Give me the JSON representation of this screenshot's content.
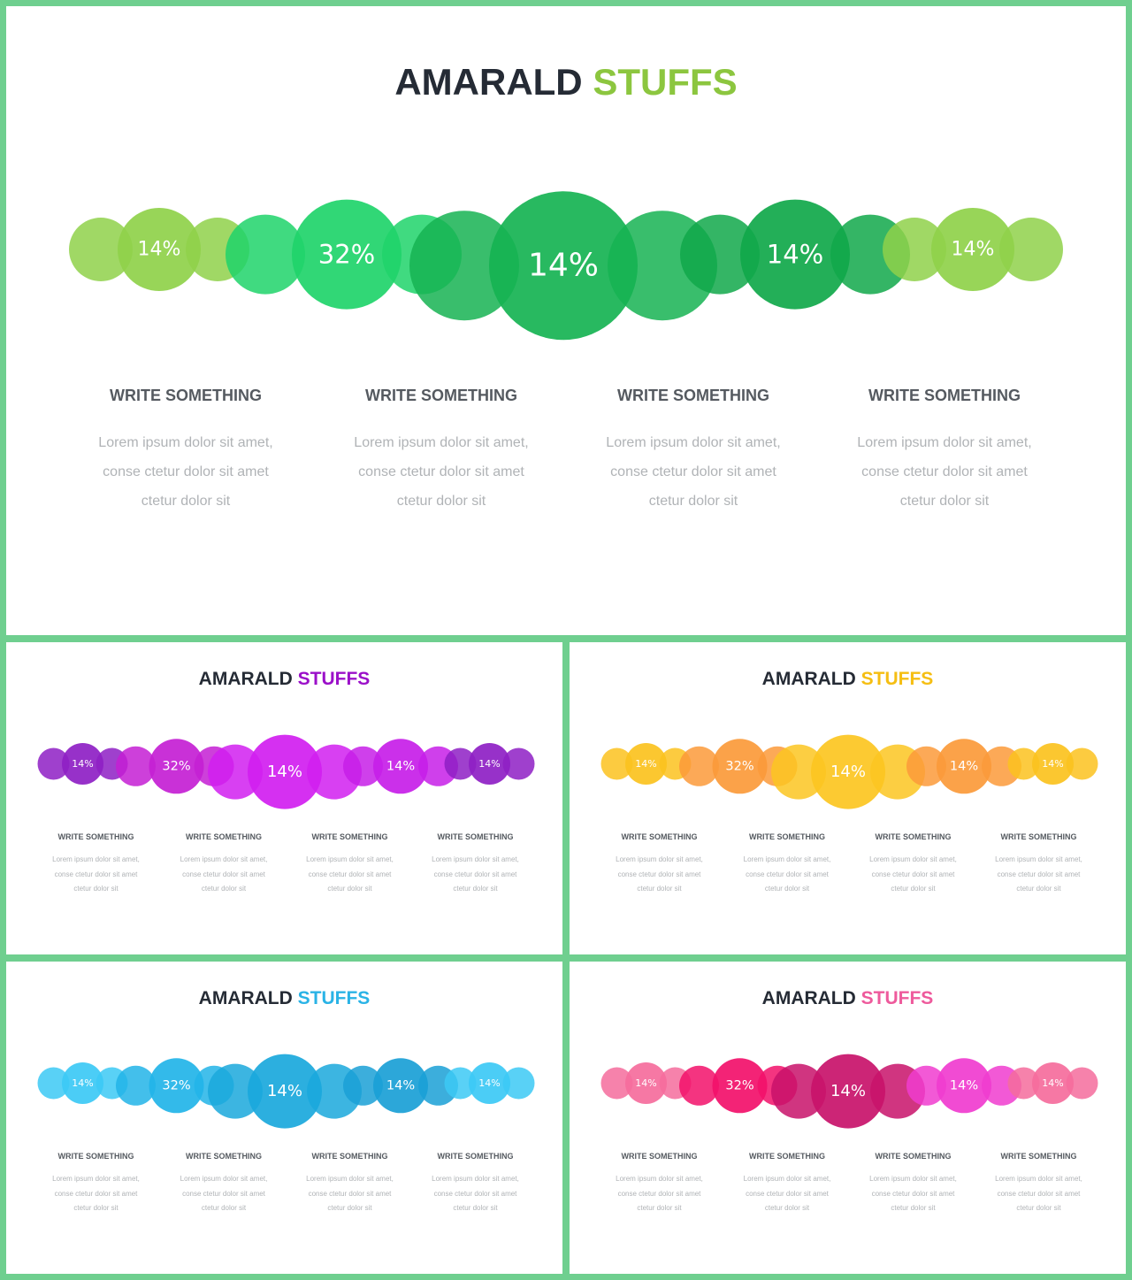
{
  "slides": [
    {
      "title": {
        "part1": "AMARALD",
        "part2": "STUFFS"
      },
      "accent": "#8cc63f",
      "bubbles": {
        "labels": [
          "14%",
          "32%",
          "14%",
          "14%",
          "14%"
        ],
        "colors": [
          "#8fd14a",
          "#1fd46a",
          "#16b352",
          "#10a84a",
          "#8fd14a"
        ]
      },
      "columns": [
        {
          "heading": "WRITE SOMETHING",
          "text": "Lorem ipsum dolor sit amet,\nconse ctetur dolor sit amet\nctetur dolor sit"
        },
        {
          "heading": "WRITE SOMETHING",
          "text": "Lorem ipsum dolor sit amet,\nconse ctetur dolor sit amet\nctetur dolor sit"
        },
        {
          "heading": "WRITE SOMETHING",
          "text": "Lorem ipsum dolor sit amet,\nconse ctetur dolor sit amet\nctetur dolor sit"
        },
        {
          "heading": "WRITE SOMETHING",
          "text": "Lorem ipsum dolor sit amet,\nconse ctetur dolor sit amet\nctetur dolor sit"
        }
      ]
    },
    {
      "title": {
        "part1": "AMARALD",
        "part2": "STUFFS"
      },
      "accent": "#9b10c9",
      "bubbles": {
        "labels": [
          "14%",
          "32%",
          "14%",
          "14%",
          "14%"
        ],
        "colors": [
          "#8e1fc4",
          "#c41fd4",
          "#d11ef0",
          "#c71ee8",
          "#8e1fc4"
        ]
      },
      "columns": [
        {
          "heading": "WRITE SOMETHING",
          "text": "Lorem ipsum dolor sit amet,\nconse ctetur dolor sit amet\nctetur dolor sit"
        },
        {
          "heading": "WRITE SOMETHING",
          "text": "Lorem ipsum dolor sit amet,\nconse ctetur dolor sit amet\nctetur dolor sit"
        },
        {
          "heading": "WRITE SOMETHING",
          "text": "Lorem ipsum dolor sit amet,\nconse ctetur dolor sit amet\nctetur dolor sit"
        },
        {
          "heading": "WRITE SOMETHING",
          "text": "Lorem ipsum dolor sit amet,\nconse ctetur dolor sit amet\nctetur dolor sit"
        }
      ]
    },
    {
      "title": {
        "part1": "AMARALD",
        "part2": "STUFFS"
      },
      "accent": "#f5be12",
      "bubbles": {
        "labels": [
          "14%",
          "32%",
          "14%",
          "14%",
          "14%"
        ],
        "colors": [
          "#fbc21e",
          "#fb9a3a",
          "#fcc521",
          "#fb9a3a",
          "#fbc21e"
        ]
      },
      "columns": [
        {
          "heading": "WRITE SOMETHING",
          "text": "Lorem ipsum dolor sit amet,\nconse ctetur dolor sit amet\nctetur dolor sit"
        },
        {
          "heading": "WRITE SOMETHING",
          "text": "Lorem ipsum dolor sit amet,\nconse ctetur dolor sit amet\nctetur dolor sit"
        },
        {
          "heading": "WRITE SOMETHING",
          "text": "Lorem ipsum dolor sit amet,\nconse ctetur dolor sit amet\nctetur dolor sit"
        },
        {
          "heading": "WRITE SOMETHING",
          "text": "Lorem ipsum dolor sit amet,\nconse ctetur dolor sit amet\nctetur dolor sit"
        }
      ]
    },
    {
      "title": {
        "part1": "AMARALD",
        "part2": "STUFFS"
      },
      "accent": "#2ab3e6",
      "bubbles": {
        "labels": [
          "14%",
          "32%",
          "14%",
          "14%",
          "14%"
        ],
        "colors": [
          "#3cc9f5",
          "#22b4e8",
          "#1aa8dc",
          "#1aa0d6",
          "#3cc9f5"
        ]
      },
      "columns": [
        {
          "heading": "WRITE SOMETHING",
          "text": "Lorem ipsum dolor sit amet,\nconse ctetur dolor sit amet\nctetur dolor sit"
        },
        {
          "heading": "WRITE SOMETHING",
          "text": "Lorem ipsum dolor sit amet,\nconse ctetur dolor sit amet\nctetur dolor sit"
        },
        {
          "heading": "WRITE SOMETHING",
          "text": "Lorem ipsum dolor sit amet,\nconse ctetur dolor sit amet\nctetur dolor sit"
        },
        {
          "heading": "WRITE SOMETHING",
          "text": "Lorem ipsum dolor sit amet,\nconse ctetur dolor sit amet\nctetur dolor sit"
        }
      ]
    },
    {
      "title": {
        "part1": "AMARALD",
        "part2": "STUFFS"
      },
      "accent": "#ee5a9c",
      "bubbles": {
        "labels": [
          "14%",
          "32%",
          "14%",
          "14%",
          "14%"
        ],
        "colors": [
          "#f56c9c",
          "#f2106a",
          "#c8126a",
          "#f03ccf",
          "#f56c9c"
        ]
      },
      "columns": [
        {
          "heading": "WRITE SOMETHING",
          "text": "Lorem ipsum dolor sit amet,\nconse ctetur dolor sit amet\nctetur dolor sit"
        },
        {
          "heading": "WRITE SOMETHING",
          "text": "Lorem ipsum dolor sit amet,\nconse ctetur dolor sit amet\nctetur dolor sit"
        },
        {
          "heading": "WRITE SOMETHING",
          "text": "Lorem ipsum dolor sit amet,\nconse ctetur dolor sit amet\nctetur dolor sit"
        },
        {
          "heading": "WRITE SOMETHING",
          "text": "Lorem ipsum dolor sit amet,\nconse ctetur dolor sit amet\nctetur dolor sit"
        }
      ]
    }
  ]
}
